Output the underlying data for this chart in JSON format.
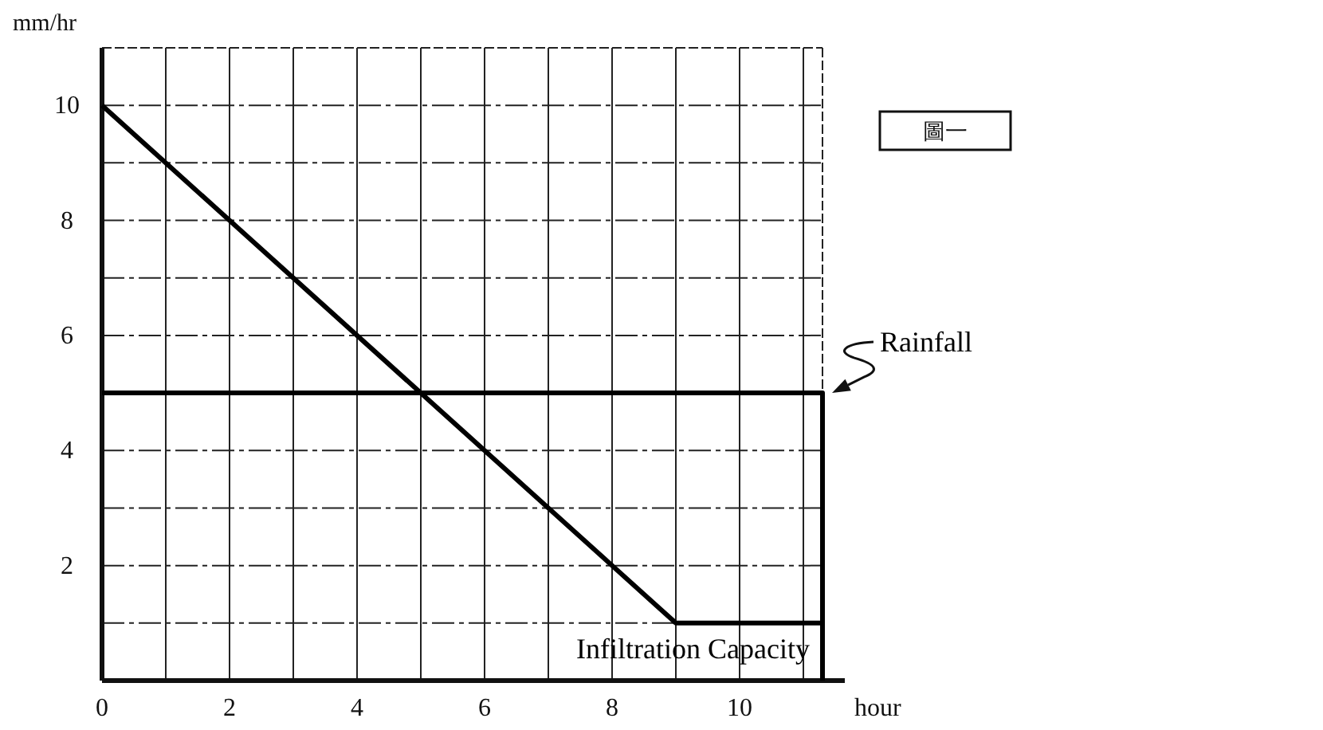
{
  "chart_data": {
    "type": "line",
    "xlabel": "hour",
    "ylabel": "mm/hr",
    "xlim": [
      0,
      11.3
    ],
    "ylim": [
      0,
      11
    ],
    "xticks": [
      0,
      {
        "value": 1,
        "label": null
      },
      2,
      {
        "value": 3,
        "label": null
      },
      4,
      {
        "value": 5,
        "label": null
      },
      6,
      {
        "value": 7,
        "label": null
      },
      8,
      {
        "value": 9,
        "label": null
      },
      10,
      {
        "value": 11,
        "label": null
      }
    ],
    "yticks": [
      {
        "value": 1,
        "label": null
      },
      2,
      {
        "value": 3,
        "label": null
      },
      4,
      {
        "value": 5,
        "label": null
      },
      6,
      {
        "value": 7,
        "label": null
      },
      8,
      {
        "value": 9,
        "label": null
      },
      10
    ],
    "grid": true,
    "legend": false,
    "marker": "none",
    "line_style": "solid",
    "series": [
      {
        "name": "Rainfall",
        "color": "#000000",
        "x": [
          0,
          11.3,
          11.3
        ],
        "values": [
          5,
          5,
          0
        ]
      },
      {
        "name": "Infiltration Capacity",
        "color": "#000000",
        "x": [
          0,
          9,
          11.3
        ],
        "values": [
          10,
          1,
          1
        ]
      }
    ],
    "annotations": [
      "圖一"
    ]
  }
}
